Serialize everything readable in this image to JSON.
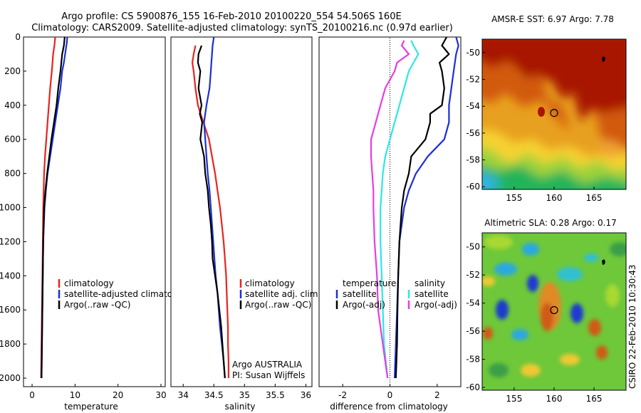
{
  "header": {
    "title_line1": "Argo profile: CS 5900876_155 16-Feb-2010 20100220_554 54.506S 160E",
    "title_line2": "Climatology: CARS2009. Satellite-adjusted climatology: synTS_20100216.nc (0.97d earlier)"
  },
  "footer": {
    "credit": "CSIRO 22-Feb-2010 10:30:43"
  },
  "colors": {
    "climatology": "#e8241c",
    "satellite": "#1a2fd6",
    "argo": "#000000",
    "sat_diff_sal": "#2ee6e6",
    "argo_diff_sal": "#e63ce6"
  },
  "chart_data": [
    {
      "id": "temperature",
      "type": "line",
      "xlabel": "temperature",
      "ylabel": "",
      "xlim": [
        -2,
        31
      ],
      "ylim": [
        2050,
        0
      ],
      "xticks": [
        "0",
        "10",
        "20",
        "30"
      ],
      "yticks": [
        "0",
        "200",
        "400",
        "600",
        "800",
        "1000",
        "1200",
        "1400",
        "1600",
        "1800",
        "2000"
      ],
      "legend": [
        "climatology",
        "satellite-adjusted climatology",
        "Argo(..raw -QC)"
      ],
      "legend_position": "lower-right",
      "series": [
        {
          "name": "climatology",
          "color": "#e8241c",
          "points": [
            [
              5.4,
              0
            ],
            [
              5.2,
              50
            ],
            [
              4.9,
              100
            ],
            [
              4.6,
              200
            ],
            [
              4.2,
              300
            ],
            [
              3.9,
              400
            ],
            [
              3.6,
              500
            ],
            [
              3.3,
              600
            ],
            [
              3.0,
              700
            ],
            [
              2.8,
              800
            ],
            [
              2.7,
              900
            ],
            [
              2.6,
              1000
            ],
            [
              2.5,
              1200
            ],
            [
              2.4,
              1400
            ],
            [
              2.3,
              1600
            ],
            [
              2.2,
              1800
            ],
            [
              2.1,
              2000
            ]
          ]
        },
        {
          "name": "satellite-adjusted climatology",
          "color": "#1a2fd6",
          "points": [
            [
              8.2,
              0
            ],
            [
              8.1,
              30
            ],
            [
              7.8,
              80
            ],
            [
              7.4,
              150
            ],
            [
              7.0,
              200
            ],
            [
              6.6,
              300
            ],
            [
              6.0,
              400
            ],
            [
              5.4,
              500
            ],
            [
              4.8,
              600
            ],
            [
              4.2,
              700
            ],
            [
              3.6,
              800
            ],
            [
              3.2,
              900
            ],
            [
              2.9,
              1000
            ],
            [
              2.6,
              1200
            ],
            [
              2.5,
              1400
            ],
            [
              2.4,
              1600
            ],
            [
              2.3,
              1800
            ],
            [
              2.2,
              2000
            ]
          ]
        },
        {
          "name": "Argo(..raw -QC)",
          "color": "#000000",
          "points": [
            [
              7.6,
              0
            ],
            [
              7.4,
              50
            ],
            [
              7.0,
              100
            ],
            [
              6.6,
              200
            ],
            [
              6.1,
              300
            ],
            [
              5.7,
              400
            ],
            [
              5.1,
              500
            ],
            [
              4.5,
              600
            ],
            [
              4.0,
              700
            ],
            [
              3.5,
              800
            ],
            [
              3.1,
              900
            ],
            [
              2.8,
              1000
            ],
            [
              2.6,
              1200
            ],
            [
              2.5,
              1400
            ],
            [
              2.4,
              1600
            ],
            [
              2.3,
              1800
            ],
            [
              2.2,
              2000
            ]
          ]
        }
      ]
    },
    {
      "id": "salinity",
      "type": "line",
      "xlabel": "salinity",
      "ylabel": "",
      "xlim": [
        33.8,
        36.1
      ],
      "ylim": [
        2050,
        0
      ],
      "xticks": [
        "34",
        "34.5",
        "35",
        "35.5",
        "36"
      ],
      "yticks": [],
      "legend": [
        "climatology",
        "satellite adj. clim.",
        "Argo(..raw -QC)"
      ],
      "legend_position": "lower-right",
      "series": [
        {
          "name": "climatology",
          "color": "#e8241c",
          "points": [
            [
              34.2,
              50
            ],
            [
              34.17,
              100
            ],
            [
              34.15,
              150
            ],
            [
              34.17,
              200
            ],
            [
              34.2,
              300
            ],
            [
              34.24,
              400
            ],
            [
              34.33,
              500
            ],
            [
              34.42,
              600
            ],
            [
              34.47,
              700
            ],
            [
              34.52,
              800
            ],
            [
              34.56,
              900
            ],
            [
              34.6,
              1000
            ],
            [
              34.63,
              1100
            ],
            [
              34.66,
              1200
            ],
            [
              34.68,
              1300
            ],
            [
              34.7,
              1400
            ],
            [
              34.71,
              1500
            ],
            [
              34.72,
              1600
            ],
            [
              34.73,
              1700
            ],
            [
              34.73,
              1800
            ],
            [
              34.74,
              1900
            ],
            [
              34.74,
              2000
            ]
          ]
        },
        {
          "name": "satellite adj. clim.",
          "color": "#1a2fd6",
          "points": [
            [
              34.5,
              0
            ],
            [
              34.48,
              50
            ],
            [
              34.47,
              100
            ],
            [
              34.46,
              150
            ],
            [
              34.45,
              200
            ],
            [
              34.43,
              300
            ],
            [
              34.38,
              400
            ],
            [
              34.34,
              500
            ],
            [
              34.36,
              600
            ],
            [
              34.38,
              700
            ],
            [
              34.4,
              800
            ],
            [
              34.43,
              900
            ],
            [
              34.45,
              1000
            ],
            [
              34.47,
              1100
            ],
            [
              34.49,
              1200
            ],
            [
              34.51,
              1300
            ],
            [
              34.53,
              1400
            ],
            [
              34.56,
              1500
            ],
            [
              34.58,
              1600
            ],
            [
              34.6,
              1700
            ],
            [
              34.63,
              1800
            ],
            [
              34.66,
              1900
            ],
            [
              34.68,
              2000
            ]
          ]
        },
        {
          "name": "Argo(..raw -QC)",
          "color": "#000000",
          "points": [
            [
              34.3,
              50
            ],
            [
              34.25,
              100
            ],
            [
              34.24,
              150
            ],
            [
              34.28,
              200
            ],
            [
              34.25,
              300
            ],
            [
              34.3,
              400
            ],
            [
              34.27,
              450
            ],
            [
              34.31,
              500
            ],
            [
              34.28,
              600
            ],
            [
              34.34,
              700
            ],
            [
              34.36,
              800
            ],
            [
              34.4,
              900
            ],
            [
              34.42,
              1000
            ],
            [
              34.45,
              1100
            ],
            [
              34.47,
              1200
            ],
            [
              34.48,
              1300
            ],
            [
              34.52,
              1400
            ],
            [
              34.56,
              1500
            ],
            [
              34.59,
              1600
            ],
            [
              34.62,
              1700
            ],
            [
              34.64,
              1800
            ],
            [
              34.66,
              1900
            ],
            [
              34.68,
              2000
            ]
          ]
        }
      ],
      "annotations": [
        "Argo AUSTRALIA",
        "PI: Susan Wijffels"
      ]
    },
    {
      "id": "difference",
      "type": "line",
      "xlabel": "difference from climatology",
      "ylabel": "",
      "xlim": [
        -3,
        3
      ],
      "ylim": [
        2050,
        0
      ],
      "xticks": [
        "-2",
        "0",
        "2"
      ],
      "yticks": [],
      "zero_line": 0,
      "legend_left": [
        "temperature",
        "satellite",
        "Argo(-adj)"
      ],
      "legend_right": [
        "salinity",
        "satellite",
        "Argo(-adj)"
      ],
      "legend_position": "lower-center",
      "series": [
        {
          "name": "temperature satellite",
          "color": "#1a2fd6",
          "points": [
            [
              2.8,
              0
            ],
            [
              2.9,
              50
            ],
            [
              2.8,
              100
            ],
            [
              2.7,
              200
            ],
            [
              2.6,
              300
            ],
            [
              2.5,
              400
            ],
            [
              2.5,
              500
            ],
            [
              2.3,
              600
            ],
            [
              1.6,
              700
            ],
            [
              1.1,
              800
            ],
            [
              0.8,
              900
            ],
            [
              0.6,
              1000
            ],
            [
              0.4,
              1200
            ],
            [
              0.35,
              1400
            ],
            [
              0.3,
              1600
            ],
            [
              0.25,
              1800
            ],
            [
              0.2,
              2000
            ]
          ]
        },
        {
          "name": "temperature Argo(-adj)",
          "color": "#000000",
          "points": [
            [
              2.4,
              0
            ],
            [
              2.2,
              50
            ],
            [
              2.5,
              100
            ],
            [
              2.1,
              150
            ],
            [
              2.2,
              200
            ],
            [
              2.3,
              300
            ],
            [
              2.2,
              400
            ],
            [
              1.7,
              450
            ],
            [
              1.7,
              500
            ],
            [
              1.5,
              600
            ],
            [
              0.9,
              700
            ],
            [
              0.8,
              800
            ],
            [
              0.6,
              900
            ],
            [
              0.5,
              1000
            ],
            [
              0.4,
              1200
            ],
            [
              0.35,
              1400
            ],
            [
              0.32,
              1600
            ],
            [
              0.3,
              1800
            ],
            [
              0.25,
              2000
            ]
          ]
        },
        {
          "name": "salinity satellite",
          "color": "#2ee6e6",
          "points": [
            [
              0.9,
              20
            ],
            [
              1.0,
              50
            ],
            [
              1.2,
              100
            ],
            [
              0.8,
              200
            ],
            [
              0.6,
              300
            ],
            [
              0.4,
              400
            ],
            [
              0.2,
              500
            ],
            [
              0.0,
              600
            ],
            [
              -0.2,
              700
            ],
            [
              -0.3,
              800
            ],
            [
              -0.35,
              900
            ],
            [
              -0.4,
              1000
            ],
            [
              -0.4,
              1200
            ],
            [
              -0.35,
              1400
            ],
            [
              -0.3,
              1600
            ],
            [
              -0.25,
              1800
            ],
            [
              -0.1,
              2000
            ]
          ]
        },
        {
          "name": "salinity Argo(-adj)",
          "color": "#e63ce6",
          "points": [
            [
              0.6,
              20
            ],
            [
              0.5,
              50
            ],
            [
              0.8,
              100
            ],
            [
              0.3,
              150
            ],
            [
              0.2,
              200
            ],
            [
              -0.2,
              300
            ],
            [
              -0.4,
              400
            ],
            [
              -0.6,
              500
            ],
            [
              -0.8,
              600
            ],
            [
              -0.8,
              700
            ],
            [
              -0.75,
              800
            ],
            [
              -0.7,
              900
            ],
            [
              -0.7,
              1000
            ],
            [
              -0.65,
              1200
            ],
            [
              -0.55,
              1400
            ],
            [
              -0.5,
              1600
            ],
            [
              -0.3,
              1800
            ],
            [
              -0.1,
              2000
            ]
          ]
        }
      ]
    },
    {
      "id": "sst_map",
      "type": "heatmap",
      "title": "AMSR-E SST: 6.97 Argo: 7.78",
      "xticks": [
        "155",
        "160",
        "165"
      ],
      "yticks": [
        "-50",
        "-52",
        "-54",
        "-56",
        "-58",
        "-60"
      ],
      "xlim": [
        151,
        169
      ],
      "ylim": [
        -60.2,
        -49
      ],
      "marker": [
        160,
        -54.5
      ]
    },
    {
      "id": "sla_map",
      "type": "heatmap",
      "title": "Altimetric SLA: 0.28 Argo: 0.17",
      "xticks": [
        "155",
        "160",
        "165"
      ],
      "yticks": [
        "-50",
        "-52",
        "-54",
        "-56",
        "-58",
        "-60"
      ],
      "xlim": [
        151,
        169
      ],
      "ylim": [
        -60.2,
        -49
      ],
      "marker": [
        160,
        -54.5
      ]
    }
  ]
}
